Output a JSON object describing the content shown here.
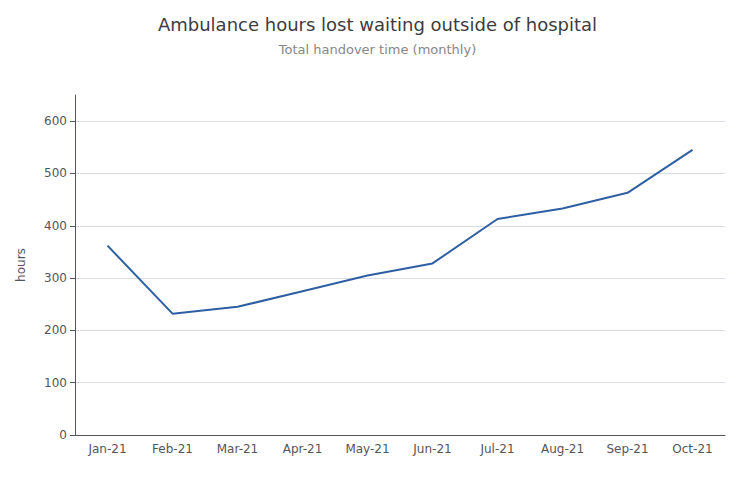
{
  "chart_data": {
    "type": "line",
    "title": "Ambulance hours lost waiting outside of hospital",
    "subtitle": "Total handover time (monthly)",
    "ylabel": "hours",
    "categories": [
      "Jan-21",
      "Feb-21",
      "Mar-21",
      "Apr-21",
      "May-21",
      "Jun-21",
      "Jul-21",
      "Aug-21",
      "Sep-21",
      "Oct-21"
    ],
    "values": [
      362,
      232,
      245,
      275,
      305,
      328,
      413,
      433,
      463,
      545
    ],
    "color": "#2E5FA3",
    "ylim": [
      0,
      650
    ],
    "yticks": [
      0,
      100,
      200,
      300,
      400,
      500,
      600
    ],
    "grid": true
  }
}
